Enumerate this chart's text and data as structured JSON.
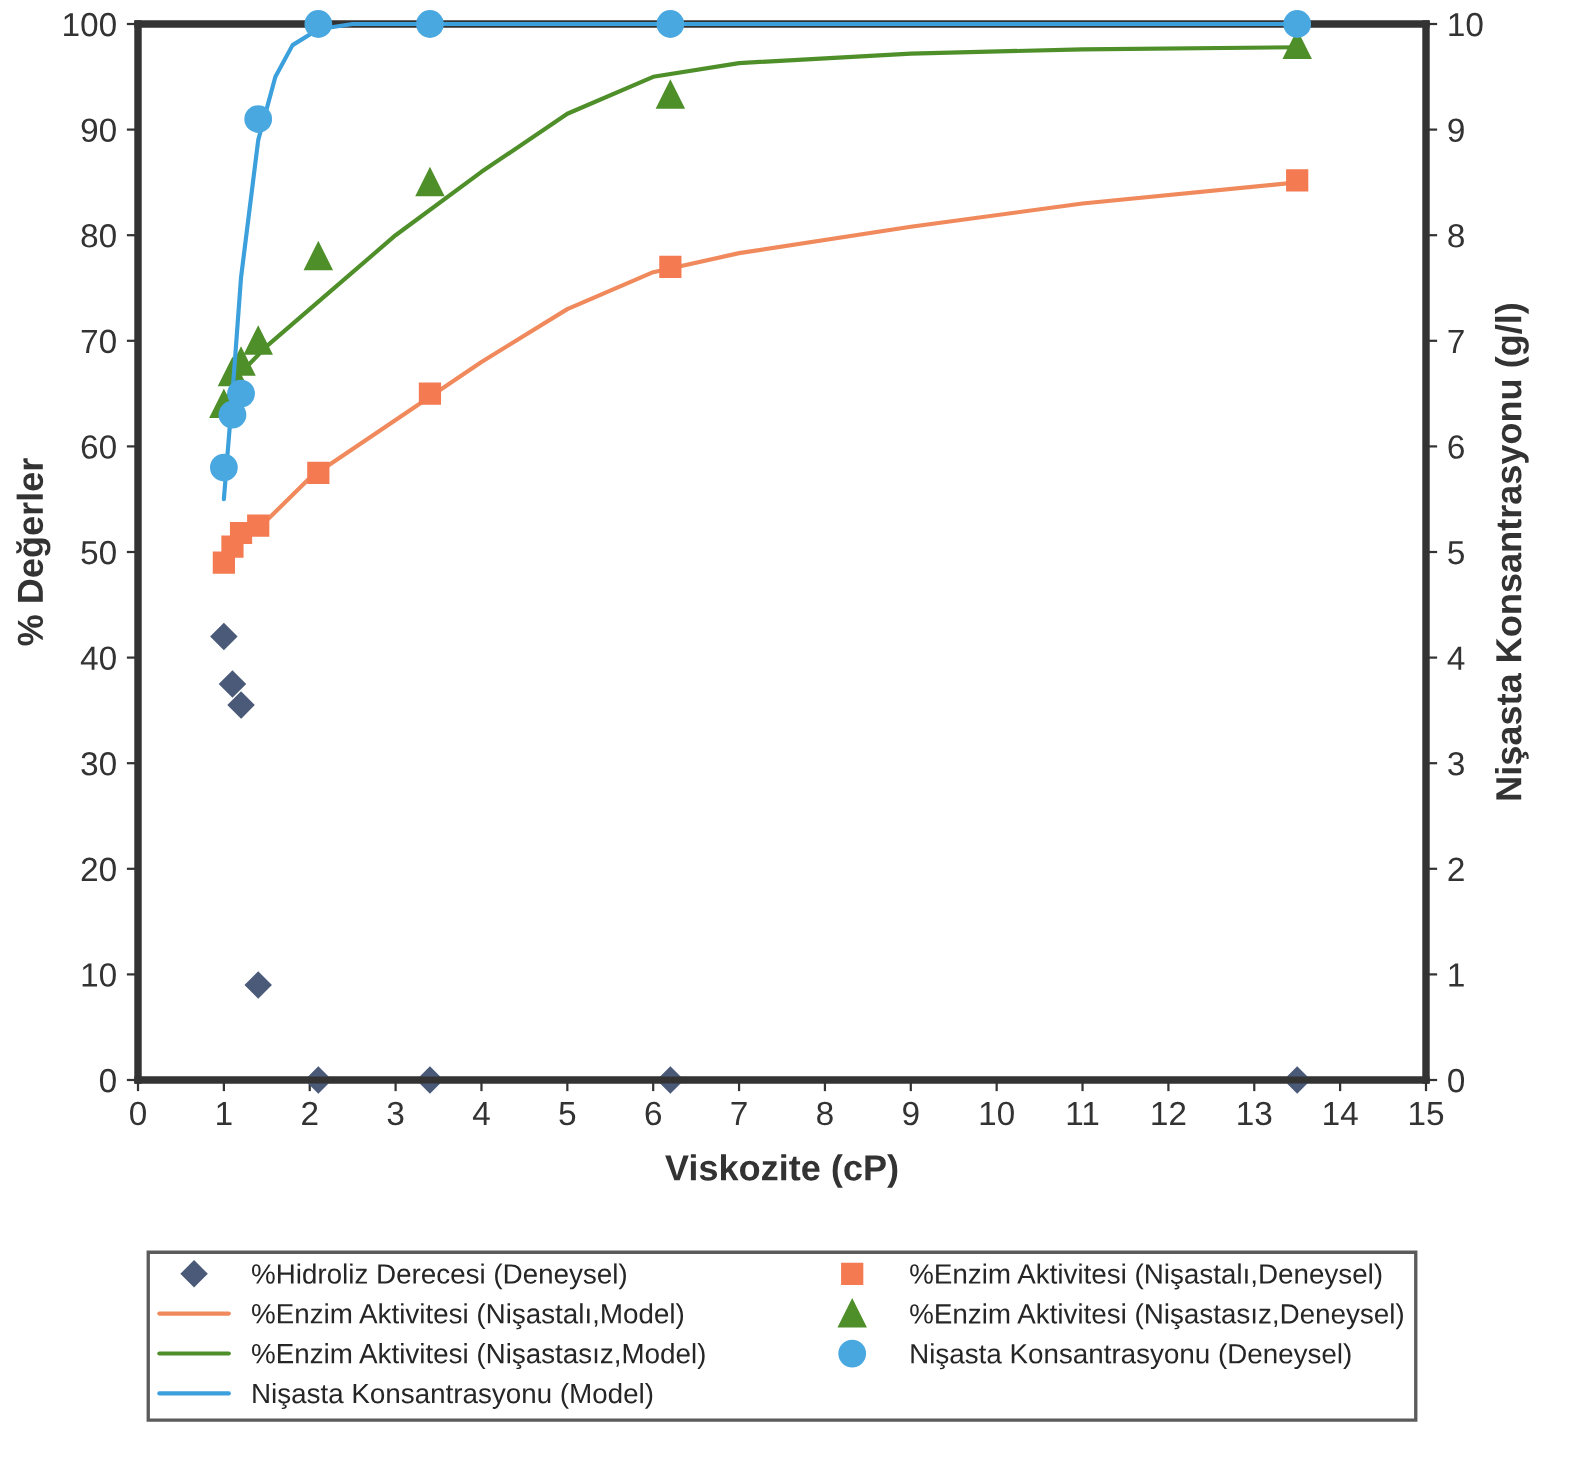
{
  "chart_data": {
    "type": "scatter",
    "xlabel": "Viskozite (cP)",
    "ylabel": "% Değerler",
    "y2label": "Nişasta Konsantrasyonu (g/l)",
    "xlim": [
      0,
      15
    ],
    "xticks": [
      0,
      1,
      2,
      3,
      4,
      5,
      6,
      7,
      8,
      9,
      10,
      11,
      12,
      13,
      14,
      15
    ],
    "ylim": [
      0,
      100
    ],
    "yticks": [
      0,
      10,
      20,
      30,
      40,
      50,
      60,
      70,
      80,
      90,
      100
    ],
    "y2lim": [
      0,
      10
    ],
    "y2ticks": [
      0,
      1,
      2,
      3,
      4,
      5,
      6,
      7,
      8,
      9,
      10
    ],
    "grid": false,
    "legend": "bottom",
    "series": [
      {
        "name": "%Hidroliz Derecesi (Deneysel)",
        "marker": "diamond",
        "color": "#4a5a78",
        "x": [
          1.0,
          1.1,
          1.2,
          1.4,
          2.1,
          3.4,
          6.2,
          13.5
        ],
        "values": [
          42,
          37.5,
          35.5,
          9,
          0,
          0,
          0,
          0
        ]
      },
      {
        "name": "%Enzim Aktivitesi (Nişastalı,Model)",
        "type": "line",
        "marker": "none",
        "line_style": "solid",
        "color": "#f08a5d",
        "x": [
          1.0,
          1.2,
          1.5,
          2.0,
          3.0,
          4.0,
          5.0,
          6.0,
          7.0,
          9.0,
          11.0,
          13.5
        ],
        "values": [
          49,
          51,
          53,
          57,
          62.5,
          68,
          73,
          76.5,
          78.3,
          80.8,
          83,
          85
        ]
      },
      {
        "name": "%Enzim Aktivitesi (Nişastasız,Model)",
        "type": "line",
        "marker": "none",
        "line_style": "solid",
        "color": "#4e8f2a",
        "x": [
          1.0,
          1.2,
          1.5,
          2.0,
          3.0,
          4.0,
          5.0,
          6.0,
          7.0,
          9.0,
          11.0,
          13.5
        ],
        "values": [
          64,
          67,
          69.5,
          73,
          80,
          86,
          91.5,
          95,
          96.3,
          97.2,
          97.6,
          97.8
        ]
      },
      {
        "name": "Nişasta Konsantrasyonu (Model)",
        "type": "line",
        "axis": "y2",
        "marker": "none",
        "line_style": "solid",
        "color": "#3ca0dc",
        "x": [
          1.0,
          1.1,
          1.2,
          1.4,
          1.6,
          1.8,
          2.1,
          2.5,
          3.4,
          6.2,
          13.5
        ],
        "values": [
          5.5,
          6.5,
          7.6,
          8.9,
          9.5,
          9.8,
          9.95,
          10,
          10,
          10,
          10
        ]
      },
      {
        "name": "%Enzim Aktivitesi (Nişastalı,Deneysel)",
        "marker": "square",
        "color": "#f47a52",
        "x": [
          1.0,
          1.1,
          1.2,
          1.4,
          2.1,
          3.4,
          6.2,
          13.5
        ],
        "values": [
          49,
          50.5,
          51.8,
          52.5,
          57.5,
          65,
          77,
          85.2
        ]
      },
      {
        "name": "%Enzim Aktivitesi (Nişastasız,Deneysel)",
        "marker": "triangle",
        "color": "#4e8f2a",
        "x": [
          1.0,
          1.1,
          1.2,
          1.4,
          2.1,
          3.4,
          6.2,
          13.5
        ],
        "values": [
          64,
          67,
          68,
          70,
          78,
          85,
          93.3,
          98
        ]
      },
      {
        "name": "Nişasta Konsantrasyonu (Deneysel)",
        "axis": "y2",
        "marker": "circle",
        "color": "#4aa8e0",
        "x": [
          1.0,
          1.1,
          1.2,
          1.4,
          2.1,
          3.4,
          6.2,
          13.5
        ],
        "values": [
          5.8,
          6.3,
          6.5,
          9.1,
          10,
          10,
          10,
          10
        ]
      }
    ]
  }
}
